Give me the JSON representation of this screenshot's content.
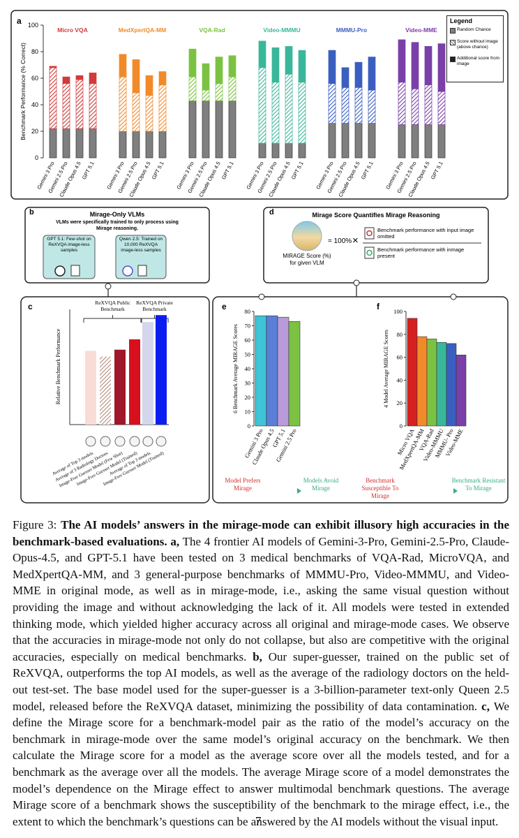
{
  "chart_data": [
    {
      "type": "grouped_stacked_bar",
      "label": "a",
      "y_label": "Benchmark Performance (% Correct)",
      "ylim": [
        0,
        100
      ],
      "yticks": [
        0,
        20,
        40,
        60,
        80,
        100
      ],
      "segment_styles": [
        "gray",
        "hatched",
        "solid"
      ],
      "gray_color": "#7f7f7f",
      "legend": {
        "title": "Legend",
        "position": "upper right",
        "items": [
          "Random Chance",
          "Score without image (above chance)",
          "Additional score from image"
        ]
      },
      "groups": [
        {
          "name": "Micro VQA",
          "color": "#d03a3a",
          "categories": [
            "Gemini 3 Pro",
            "Gemini 2.5 Pro",
            "Claude Opus 4.5",
            "GPT 5.1"
          ],
          "series": [
            [
              22,
              22,
              22,
              22
            ],
            [
              46,
              34,
              37,
              34
            ],
            [
              1,
              5,
              3,
              8
            ]
          ]
        },
        {
          "name": "MedXpertQA-MM",
          "color": "#f28a2a",
          "categories": [
            "Gemini 3 Pro",
            "Gemini 2.5 Pro",
            "Claude Opus 4.5",
            "GPT 5.1"
          ],
          "series": [
            [
              20,
              20,
              20,
              20
            ],
            [
              41,
              29,
              27,
              35
            ],
            [
              17,
              25,
              15,
              10
            ]
          ]
        },
        {
          "name": "VQA-Rad",
          "color": "#7cc242",
          "categories": [
            "Gemini 3 Pro",
            "Gemini 2.5 Pro",
            "Claude Opus 4.5",
            "GPT 5.1"
          ],
          "series": [
            [
              43,
              43,
              43,
              43
            ],
            [
              18,
              8,
              13,
              18
            ],
            [
              21,
              20,
              20,
              16
            ]
          ]
        },
        {
          "name": "Video-MMMU",
          "color": "#3ab79a",
          "categories": [
            "Gemini 3 Pro",
            "Gemini 2.5 Pro",
            "Claude Opus 4.5",
            "GPT 5.1"
          ],
          "series": [
            [
              11,
              11,
              11,
              11
            ],
            [
              57,
              46,
              52,
              46
            ],
            [
              20,
              26,
              21,
              24
            ]
          ]
        },
        {
          "name": "MMMU-Pro",
          "color": "#3b5fc0",
          "categories": [
            "Gemini 3 Pro",
            "Gemini 2.5 Pro",
            "Claude Opus 4.5",
            "GPT 5.1"
          ],
          "series": [
            [
              26,
              26,
              26,
              26
            ],
            [
              30,
              27,
              27,
              25
            ],
            [
              25,
              15,
              19,
              25
            ]
          ]
        },
        {
          "name": "Video-MME",
          "color": "#7b3fa8",
          "categories": [
            "Gemini 3 Pro",
            "Gemini 2.5 Pro",
            "Claude Opus 4.5",
            "GPT 5.1"
          ],
          "series": [
            [
              25,
              25,
              25,
              25
            ],
            [
              32,
              27,
              30,
              25
            ],
            [
              32,
              35,
              29,
              36
            ]
          ]
        }
      ]
    },
    {
      "type": "bar",
      "label": "c",
      "y_label": "Relative Benchmark Performance",
      "ylim": [
        0,
        100
      ],
      "groups": [
        {
          "name": "ReXVQA Public Benchmark",
          "categories": [
            "Average of Top 3 models",
            "Average of 3 Radiology Doctors",
            "Image-Free Guesser Model (Few Shot)",
            "Image-Free Guesser Model (Trained)"
          ],
          "values": [
            64,
            59,
            65,
            74
          ],
          "colors": [
            "#f9dcd6",
            "#b08a7a",
            "#a0162a",
            "#d8101e"
          ],
          "hatched": [
            false,
            true,
            false,
            false
          ]
        },
        {
          "name": "ReXVQA Private Benchmark",
          "categories": [
            "Average of Top 3 models",
            "Image-Free Guesser Model (Trained)"
          ],
          "values": [
            89,
            95
          ],
          "colors": [
            "#d3d6ec",
            "#0b1ef2"
          ],
          "hatched": [
            false,
            false
          ]
        }
      ]
    },
    {
      "type": "bar",
      "label": "e",
      "y_label": "6 Benchmark Average MIRAGE Scores",
      "categories": [
        "Gemini 3 Pro",
        "Claude Opus 4.5",
        "GPT 5.1",
        "Gemini 2.5 Pro"
      ],
      "values": [
        77,
        77,
        76,
        73
      ],
      "colors": [
        "#3fc3d6",
        "#5b7fd8",
        "#b99bd9",
        "#7cc242"
      ],
      "ylim": [
        0,
        80
      ],
      "yticks": [
        0,
        10,
        20,
        30,
        40,
        50,
        60,
        70,
        80
      ],
      "arrow": {
        "left": "Model Prefers Mirage",
        "right": "Models Avoid Mirage",
        "left_color": "#d03030",
        "right_color": "#3aaa8a"
      }
    },
    {
      "type": "bar",
      "label": "f",
      "y_label": "4 Model Average MIRAGE Scores",
      "categories": [
        "Micro VQA",
        "MedXpertQA-MM",
        "VQA-Rad",
        "Video-MMMU",
        "MMMU- Pro",
        "Video-MME"
      ],
      "values": [
        94,
        78,
        76,
        73,
        72,
        62
      ],
      "colors": [
        "#d62020",
        "#f28a2a",
        "#7cc242",
        "#3ab79a",
        "#3b5fc0",
        "#7b3fa8"
      ],
      "ylim": [
        0,
        100
      ],
      "yticks": [
        0,
        20,
        40,
        60,
        80,
        100
      ],
      "arrow": {
        "left": "Benchmark Susceptible To Mirage",
        "right": "Benchmark Resistant To Mirage",
        "left_color": "#d03030",
        "right_color": "#3aaa8a"
      }
    }
  ],
  "panel_b": {
    "label": "b",
    "title": "Mirage-Only VLMs",
    "text": "VLMs were specifically trained to only process using Mirage reasoning.",
    "models": [
      "GPT 5.1: Few-shot on ReXVQA image-less samples",
      "Qwen 2.5: Trained on 10,000 ReXVQA image-less samples"
    ]
  },
  "panel_d": {
    "label": "d",
    "title": "Mirage Score Quantifies Mirage Reasoning",
    "score_label": "MIRAGE Score (%) for given VLM",
    "equals": "= 100%",
    "times": "×",
    "numerator": "Benchmark performance with input image omitted",
    "denominator": "Benchmark performance with inmage present"
  },
  "caption": {
    "runs": [
      {
        "text": "Figure 3: ",
        "bold": false
      },
      {
        "text": "The AI models’ answers in the mirage-mode can exhibit illusory high accuracies in the benchmark-based evaluations.",
        "bold": true
      },
      {
        "text": " a,",
        "bold": true
      },
      {
        "text": " The 4 frontier AI models of Gemini-3-Pro, Gemini-2.5-Pro, Claude-Opus-4.5, and GPT-5.1 have been tested on 3 medical benchmarks of VQA-Rad, MicroVQA, and MedXpertQA-MM, and 3 general-purpose benchmarks of MMMU-Pro, Video-MMMU, and Video-MME in original mode, as well as in mirage-mode, i.e., asking the same visual question without providing the image and without acknowledging the lack of it. All models were tested in extended thinking mode, which yielded higher accuracy across all original and mirage-mode cases. We observe that the accuracies in mirage-mode not only do not collapse, but also are competitive with the original accuracies, especially on medical benchmarks.",
        "bold": false
      },
      {
        "text": " b,",
        "bold": true
      },
      {
        "text": " Our super-guesser, trained on the public set of ReXVQA, outperforms the top AI models, as well as the average of the radiology doctors on the held-out test-set. The base model used for the super-guesser is a 3-billion-parameter text-only Queen 2.5 model, released before the ReXVQA dataset, minimizing the possibility of data contamination.",
        "bold": false
      },
      {
        "text": " c,",
        "bold": true
      },
      {
        "text": " We define the Mirage score for a benchmark-model pair as the ratio of the model’s accuracy on the benchmark in mirage-mode over the same model’s original accuracy on the benchmark. We then calculate the Mirage score for a model as the average score over all the models tested, and for a benchmark as the average over all the models. The average Mirage score of a model demonstrates the model’s dependence on the Mirage effect to answer multimodal benchmark questions. The average Mirage score of a benchmark shows the susceptibility of the benchmark to the mirage effect, i.e., the extent to which the benchmark’s questions can be answered by the AI models without the visual input.",
        "bold": false
      }
    ]
  },
  "page_number": "7"
}
